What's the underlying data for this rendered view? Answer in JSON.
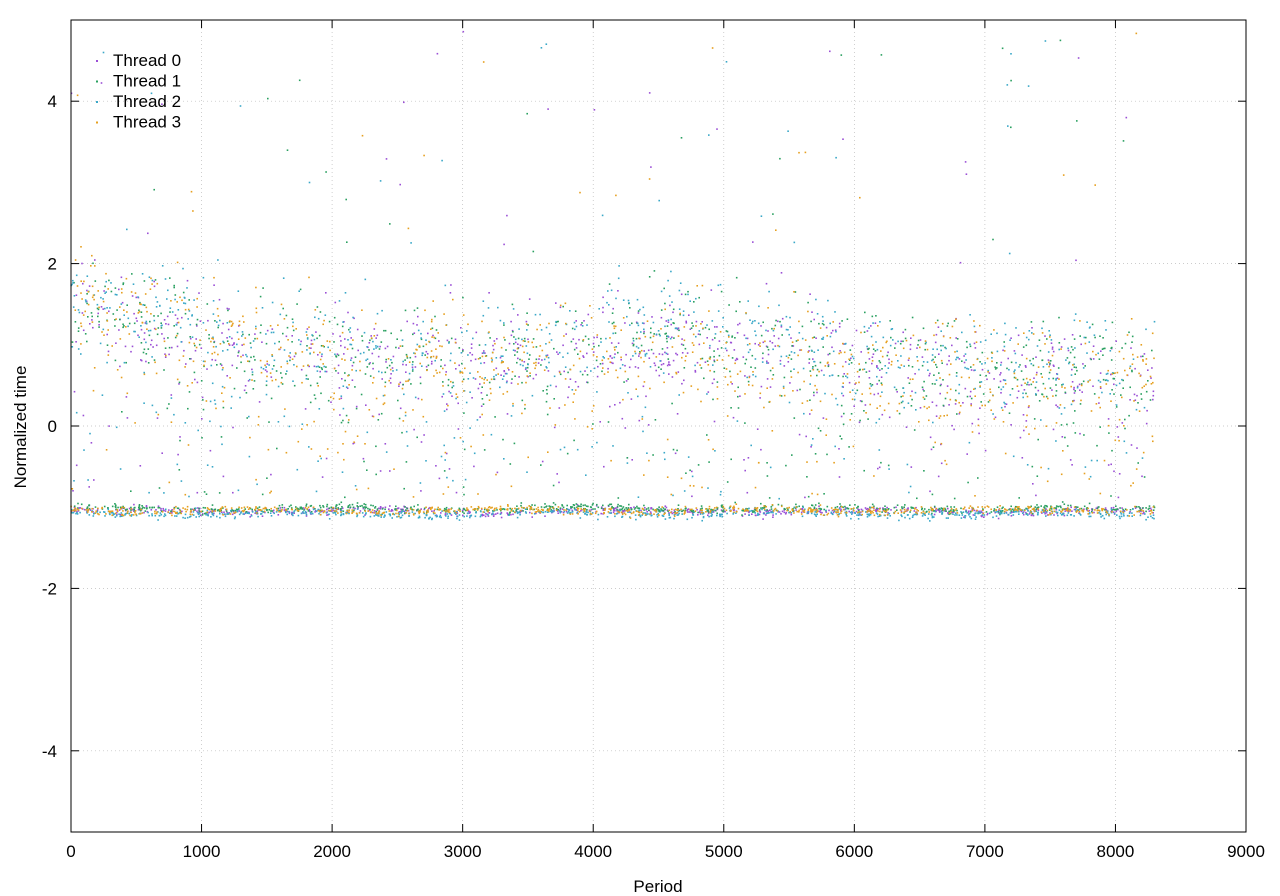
{
  "chart_data": {
    "type": "scatter",
    "title": "",
    "xlabel": "Period",
    "ylabel": "Normalized time",
    "xlim": [
      0,
      9000
    ],
    "ylim": [
      -5,
      5
    ],
    "xticks": [
      0,
      1000,
      2000,
      3000,
      4000,
      5000,
      6000,
      7000,
      8000,
      9000
    ],
    "yticks": [
      -4,
      -2,
      0,
      2,
      4
    ],
    "xtick_labels": [
      "0",
      "1000",
      "2000",
      "3000",
      "4000",
      "5000",
      "6000",
      "7000",
      "8000",
      "9000"
    ],
    "ytick_labels": [
      "-4",
      "-2",
      "0",
      "2",
      "4"
    ],
    "grid": true,
    "legend_position": "top-left",
    "x_extent": [
      0,
      8300
    ],
    "series": [
      {
        "name": "Thread 0",
        "color": "#9b4fd6",
        "baseline_level": -1.05,
        "upper_band": [
          [
            0,
            1.4
          ],
          [
            700,
            1.1
          ],
          [
            1500,
            0.85
          ],
          [
            2500,
            0.7
          ],
          [
            3500,
            0.8
          ],
          [
            4700,
            1.0
          ],
          [
            5300,
            0.8
          ],
          [
            6500,
            0.6
          ],
          [
            8300,
            0.5
          ]
        ]
      },
      {
        "name": "Thread 1",
        "color": "#2aa060",
        "baseline_level": -1.02,
        "upper_band": [
          [
            0,
            1.5
          ],
          [
            700,
            1.2
          ],
          [
            1500,
            0.8
          ],
          [
            2500,
            0.75
          ],
          [
            3500,
            0.85
          ],
          [
            4700,
            1.1
          ],
          [
            5300,
            0.85
          ],
          [
            6500,
            0.65
          ],
          [
            8300,
            0.55
          ]
        ]
      },
      {
        "name": "Thread 2",
        "color": "#3aa8c8",
        "baseline_level": -1.08,
        "upper_band": [
          [
            0,
            1.6
          ],
          [
            700,
            1.3
          ],
          [
            1500,
            0.9
          ],
          [
            2500,
            0.8
          ],
          [
            3500,
            0.9
          ],
          [
            4700,
            1.2
          ],
          [
            5300,
            0.9
          ],
          [
            6500,
            0.7
          ],
          [
            8300,
            0.6
          ]
        ]
      },
      {
        "name": "Thread 3",
        "color": "#e6a020",
        "baseline_level": -1.04,
        "upper_band": [
          [
            0,
            1.5
          ],
          [
            700,
            1.15
          ],
          [
            1500,
            0.95
          ],
          [
            2500,
            0.7
          ],
          [
            3500,
            0.8
          ],
          [
            4700,
            0.9
          ],
          [
            5300,
            0.7
          ],
          [
            6500,
            0.55
          ],
          [
            8300,
            0.45
          ]
        ]
      }
    ]
  }
}
